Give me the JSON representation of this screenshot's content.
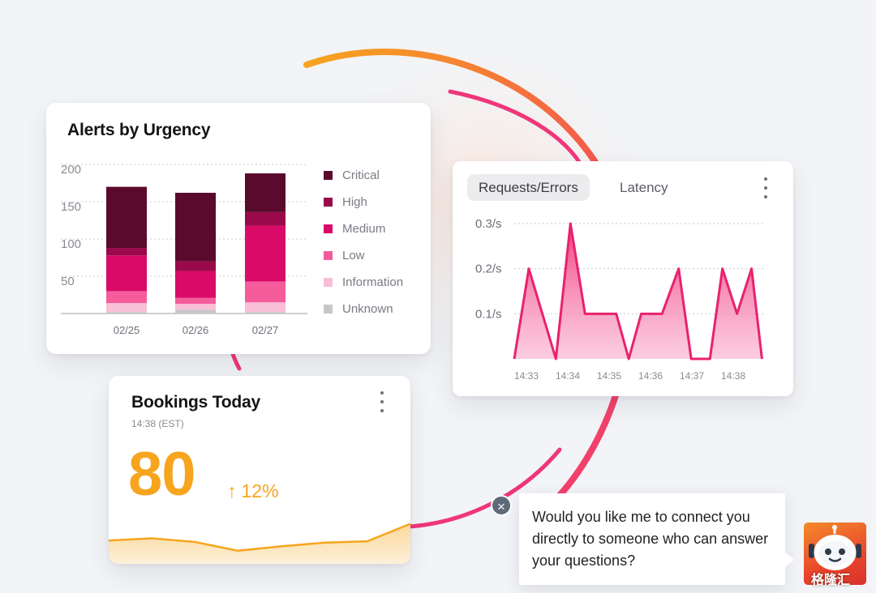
{
  "colors": {
    "critical": "#5a0a2c",
    "high": "#9a0a4a",
    "medium": "#d90a68",
    "low": "#f45c9c",
    "information": "#f9bfd7",
    "unknown": "#c7c7c7",
    "accent_orange": "#f7a51e",
    "accent_pink": "#f0367a"
  },
  "alerts_card": {
    "title": "Alerts by Urgency",
    "legend": [
      "Critical",
      "High",
      "Medium",
      "Low",
      "Information",
      "Unknown"
    ]
  },
  "requests_card": {
    "tabs": [
      {
        "label": "Requests/Errors",
        "active": true
      },
      {
        "label": "Latency",
        "active": false
      }
    ],
    "menu_icon": "kebab-menu-icon"
  },
  "bookings_card": {
    "title": "Bookings Today",
    "time": "14:38 (EST)",
    "value": "80",
    "trend_arrow": "↑",
    "trend": "12%",
    "menu_icon": "kebab-menu-icon"
  },
  "chat": {
    "message": "Would you like me to connect you directly to someone who can answer your questions?",
    "close_icon": "close-icon",
    "avatar_icon": "robot-icon",
    "watermark": "格隆汇"
  },
  "chart_data": [
    {
      "type": "bar",
      "stacked": true,
      "title": "Alerts by Urgency",
      "categories": [
        "02/25",
        "02/26",
        "02/27"
      ],
      "yticks": [
        50,
        100,
        150,
        200
      ],
      "ylim": [
        0,
        200
      ],
      "grid": true,
      "legend_position": "right",
      "series": [
        {
          "name": "Unknown",
          "values": [
            2,
            5,
            2
          ]
        },
        {
          "name": "Information",
          "values": [
            12,
            8,
            13
          ]
        },
        {
          "name": "Low",
          "values": [
            16,
            8,
            28
          ]
        },
        {
          "name": "Medium",
          "values": [
            48,
            36,
            75
          ]
        },
        {
          "name": "High",
          "values": [
            10,
            13,
            18
          ]
        },
        {
          "name": "Critical",
          "values": [
            82,
            92,
            52
          ]
        }
      ]
    },
    {
      "type": "area",
      "y_ticks": [
        "0.1/s",
        "0.2/s",
        "0.3/s"
      ],
      "ylim": [
        0,
        0.3
      ],
      "x_ticks": [
        "14:33",
        "14:34",
        "14:35",
        "14:36",
        "14:37",
        "14:38"
      ],
      "grid": true,
      "segments": [
        {
          "x": [
            0,
            0.35,
            1.0
          ],
          "y": [
            0,
            0.2,
            0
          ]
        },
        {
          "x": [
            1.0,
            1.35,
            1.7,
            2.45,
            2.8
          ],
          "y": [
            0,
            0.3,
            0.1,
            0.1,
            0
          ]
        },
        {
          "x": [
            2.8,
            3.1,
            3.6,
            4.0,
            4.3,
            4.65,
            5.1,
            5.5,
            5.8
          ],
          "y": [
            0.1,
            0.1,
            0.1,
            0.2,
            0,
            0,
            0.2,
            0.1,
            0.2
          ]
        }
      ],
      "segment_notes": "",
      "polyline": [
        [
          0.0,
          0.0
        ],
        [
          0.35,
          0.2
        ],
        [
          1.0,
          0.0
        ],
        [
          1.35,
          0.3
        ],
        [
          1.7,
          0.1
        ],
        [
          2.45,
          0.1
        ],
        [
          2.75,
          0.0
        ],
        [
          3.05,
          0.1
        ],
        [
          3.55,
          0.1
        ],
        [
          3.95,
          0.2
        ],
        [
          4.25,
          0.0
        ],
        [
          4.7,
          0.0
        ],
        [
          5.0,
          0.2
        ],
        [
          5.35,
          0.1
        ],
        [
          5.7,
          0.2
        ],
        [
          5.95,
          0.0
        ]
      ]
    },
    {
      "type": "area",
      "x": [
        0,
        1,
        2,
        3,
        4,
        5,
        6,
        7
      ],
      "values": [
        32,
        35,
        30,
        18,
        24,
        29,
        31,
        55
      ],
      "ylim": [
        0,
        100
      ]
    }
  ]
}
